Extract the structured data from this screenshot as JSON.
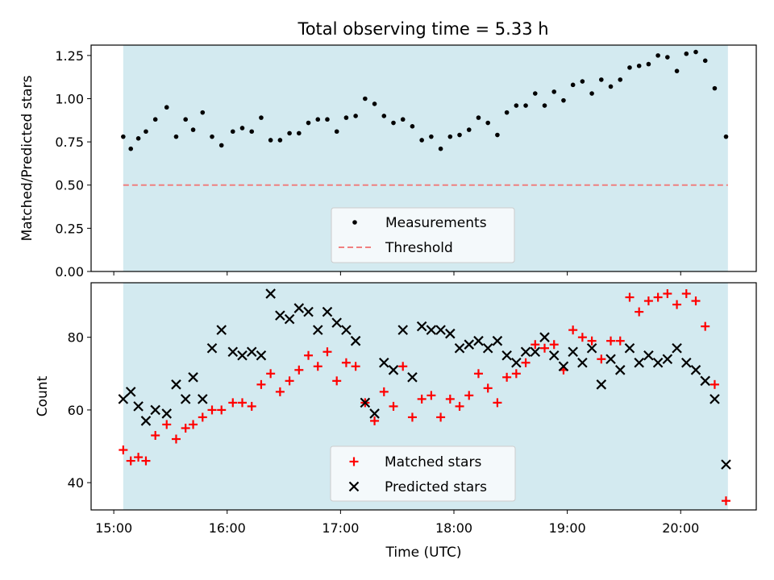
{
  "figure": {
    "title": "Total observing time = 5.33 h"
  },
  "colors": {
    "span": "#d3eaf0",
    "threshold": "#f08080",
    "measurement": "#000000",
    "matched": "#ff0000",
    "predicted": "#000000",
    "legend_bg": "#f4f9fb"
  },
  "chart_data": [
    {
      "type": "scatter",
      "ylabel": "Matched/Predicted stars",
      "ylim": [
        0,
        1.31
      ],
      "yticks": [
        0.0,
        0.25,
        0.5,
        0.75,
        1.0,
        1.25
      ],
      "ytick_labels": [
        "0.00",
        "0.25",
        "0.50",
        "0.75",
        "1.00",
        "1.25"
      ],
      "xlim": [
        "14:48",
        "20:40"
      ],
      "observing_span": [
        "15:05",
        "20:25"
      ],
      "legend_placement": "lower-center",
      "threshold": {
        "name": "Threshold",
        "value": 0.5,
        "style": "dashed"
      },
      "series": [
        {
          "name": "Measurements",
          "marker": "dot",
          "points": [
            [
              "15:05",
              0.78
            ],
            [
              "15:09",
              0.71
            ],
            [
              "15:13",
              0.77
            ],
            [
              "15:17",
              0.81
            ],
            [
              "15:22",
              0.88
            ],
            [
              "15:28",
              0.95
            ],
            [
              "15:33",
              0.78
            ],
            [
              "15:38",
              0.88
            ],
            [
              "15:42",
              0.82
            ],
            [
              "15:47",
              0.92
            ],
            [
              "15:52",
              0.78
            ],
            [
              "15:57",
              0.73
            ],
            [
              "16:03",
              0.81
            ],
            [
              "16:08",
              0.83
            ],
            [
              "16:13",
              0.81
            ],
            [
              "16:18",
              0.89
            ],
            [
              "16:23",
              0.76
            ],
            [
              "16:28",
              0.76
            ],
            [
              "16:33",
              0.8
            ],
            [
              "16:38",
              0.8
            ],
            [
              "16:43",
              0.86
            ],
            [
              "16:48",
              0.88
            ],
            [
              "16:53",
              0.88
            ],
            [
              "16:58",
              0.81
            ],
            [
              "17:03",
              0.89
            ],
            [
              "17:08",
              0.9
            ],
            [
              "17:13",
              1.0
            ],
            [
              "17:18",
              0.97
            ],
            [
              "17:23",
              0.9
            ],
            [
              "17:28",
              0.86
            ],
            [
              "17:33",
              0.88
            ],
            [
              "17:38",
              0.84
            ],
            [
              "17:43",
              0.76
            ],
            [
              "17:48",
              0.78
            ],
            [
              "17:53",
              0.71
            ],
            [
              "17:58",
              0.78
            ],
            [
              "18:03",
              0.79
            ],
            [
              "18:08",
              0.82
            ],
            [
              "18:13",
              0.89
            ],
            [
              "18:18",
              0.86
            ],
            [
              "18:23",
              0.79
            ],
            [
              "18:28",
              0.92
            ],
            [
              "18:33",
              0.96
            ],
            [
              "18:38",
              0.96
            ],
            [
              "18:43",
              1.03
            ],
            [
              "18:48",
              0.96
            ],
            [
              "18:53",
              1.04
            ],
            [
              "18:58",
              0.99
            ],
            [
              "19:03",
              1.08
            ],
            [
              "19:08",
              1.1
            ],
            [
              "19:13",
              1.03
            ],
            [
              "19:18",
              1.11
            ],
            [
              "19:23",
              1.07
            ],
            [
              "19:28",
              1.11
            ],
            [
              "19:33",
              1.18
            ],
            [
              "19:38",
              1.19
            ],
            [
              "19:43",
              1.2
            ],
            [
              "19:48",
              1.25
            ],
            [
              "19:53",
              1.24
            ],
            [
              "19:58",
              1.16
            ],
            [
              "20:03",
              1.26
            ],
            [
              "20:08",
              1.27
            ],
            [
              "20:13",
              1.22
            ],
            [
              "20:18",
              1.06
            ],
            [
              "20:24",
              0.78
            ]
          ]
        }
      ]
    },
    {
      "type": "scatter",
      "ylabel": "Count",
      "xlabel": "Time (UTC)",
      "ylim": [
        32.5,
        95
      ],
      "yticks": [
        40,
        60,
        80
      ],
      "ytick_labels": [
        "40",
        "60",
        "80"
      ],
      "xlim": [
        "14:48",
        "20:40"
      ],
      "xticks": [
        "15:00",
        "16:00",
        "17:00",
        "18:00",
        "19:00",
        "20:00"
      ],
      "observing_span": [
        "15:05",
        "20:25"
      ],
      "legend_placement": "lower-center",
      "series": [
        {
          "name": "Matched stars",
          "marker": "plus",
          "points": [
            [
              "15:05",
              49
            ],
            [
              "15:09",
              46
            ],
            [
              "15:13",
              47
            ],
            [
              "15:17",
              46
            ],
            [
              "15:22",
              53
            ],
            [
              "15:28",
              56
            ],
            [
              "15:33",
              52
            ],
            [
              "15:38",
              55
            ],
            [
              "15:42",
              56
            ],
            [
              "15:47",
              58
            ],
            [
              "15:52",
              60
            ],
            [
              "15:57",
              60
            ],
            [
              "16:03",
              62
            ],
            [
              "16:08",
              62
            ],
            [
              "16:13",
              61
            ],
            [
              "16:18",
              67
            ],
            [
              "16:23",
              70
            ],
            [
              "16:28",
              65
            ],
            [
              "16:33",
              68
            ],
            [
              "16:38",
              71
            ],
            [
              "16:43",
              75
            ],
            [
              "16:48",
              72
            ],
            [
              "16:53",
              76
            ],
            [
              "16:58",
              68
            ],
            [
              "17:03",
              73
            ],
            [
              "17:08",
              72
            ],
            [
              "17:13",
              62
            ],
            [
              "17:18",
              57
            ],
            [
              "17:23",
              65
            ],
            [
              "17:28",
              61
            ],
            [
              "17:33",
              72
            ],
            [
              "17:38",
              58
            ],
            [
              "17:43",
              63
            ],
            [
              "17:48",
              64
            ],
            [
              "17:53",
              58
            ],
            [
              "17:58",
              63
            ],
            [
              "18:03",
              61
            ],
            [
              "18:08",
              64
            ],
            [
              "18:13",
              70
            ],
            [
              "18:18",
              66
            ],
            [
              "18:23",
              62
            ],
            [
              "18:28",
              69
            ],
            [
              "18:33",
              70
            ],
            [
              "18:38",
              73
            ],
            [
              "18:43",
              78
            ],
            [
              "18:48",
              77
            ],
            [
              "18:53",
              78
            ],
            [
              "18:58",
              71
            ],
            [
              "19:03",
              82
            ],
            [
              "19:08",
              80
            ],
            [
              "19:13",
              79
            ],
            [
              "19:18",
              74
            ],
            [
              "19:23",
              79
            ],
            [
              "19:28",
              79
            ],
            [
              "19:33",
              91
            ],
            [
              "19:38",
              87
            ],
            [
              "19:43",
              90
            ],
            [
              "19:48",
              91
            ],
            [
              "19:53",
              92
            ],
            [
              "19:58",
              89
            ],
            [
              "20:03",
              92
            ],
            [
              "20:08",
              90
            ],
            [
              "20:13",
              83
            ],
            [
              "20:18",
              67
            ],
            [
              "20:24",
              35
            ]
          ]
        },
        {
          "name": "Predicted stars",
          "marker": "x",
          "points": [
            [
              "15:05",
              63
            ],
            [
              "15:09",
              65
            ],
            [
              "15:13",
              61
            ],
            [
              "15:17",
              57
            ],
            [
              "15:22",
              60
            ],
            [
              "15:28",
              59
            ],
            [
              "15:33",
              67
            ],
            [
              "15:38",
              63
            ],
            [
              "15:42",
              69
            ],
            [
              "15:47",
              63
            ],
            [
              "15:52",
              77
            ],
            [
              "15:57",
              82
            ],
            [
              "16:03",
              76
            ],
            [
              "16:08",
              75
            ],
            [
              "16:13",
              76
            ],
            [
              "16:18",
              75
            ],
            [
              "16:23",
              92
            ],
            [
              "16:28",
              86
            ],
            [
              "16:33",
              85
            ],
            [
              "16:38",
              88
            ],
            [
              "16:43",
              87
            ],
            [
              "16:48",
              82
            ],
            [
              "16:53",
              87
            ],
            [
              "16:58",
              84
            ],
            [
              "17:03",
              82
            ],
            [
              "17:08",
              79
            ],
            [
              "17:13",
              62
            ],
            [
              "17:18",
              59
            ],
            [
              "17:23",
              73
            ],
            [
              "17:28",
              71
            ],
            [
              "17:33",
              82
            ],
            [
              "17:38",
              69
            ],
            [
              "17:43",
              83
            ],
            [
              "17:48",
              82
            ],
            [
              "17:53",
              82
            ],
            [
              "17:58",
              81
            ],
            [
              "18:03",
              77
            ],
            [
              "18:08",
              78
            ],
            [
              "18:13",
              79
            ],
            [
              "18:18",
              77
            ],
            [
              "18:23",
              79
            ],
            [
              "18:28",
              75
            ],
            [
              "18:33",
              73
            ],
            [
              "18:38",
              76
            ],
            [
              "18:43",
              76
            ],
            [
              "18:48",
              80
            ],
            [
              "18:53",
              75
            ],
            [
              "18:58",
              72
            ],
            [
              "19:03",
              76
            ],
            [
              "19:08",
              73
            ],
            [
              "19:13",
              77
            ],
            [
              "19:18",
              67
            ],
            [
              "19:23",
              74
            ],
            [
              "19:28",
              71
            ],
            [
              "19:33",
              77
            ],
            [
              "19:38",
              73
            ],
            [
              "19:43",
              75
            ],
            [
              "19:48",
              73
            ],
            [
              "19:53",
              74
            ],
            [
              "19:58",
              77
            ],
            [
              "20:03",
              73
            ],
            [
              "20:08",
              71
            ],
            [
              "20:13",
              68
            ],
            [
              "20:18",
              63
            ],
            [
              "20:24",
              45
            ]
          ]
        }
      ]
    }
  ]
}
